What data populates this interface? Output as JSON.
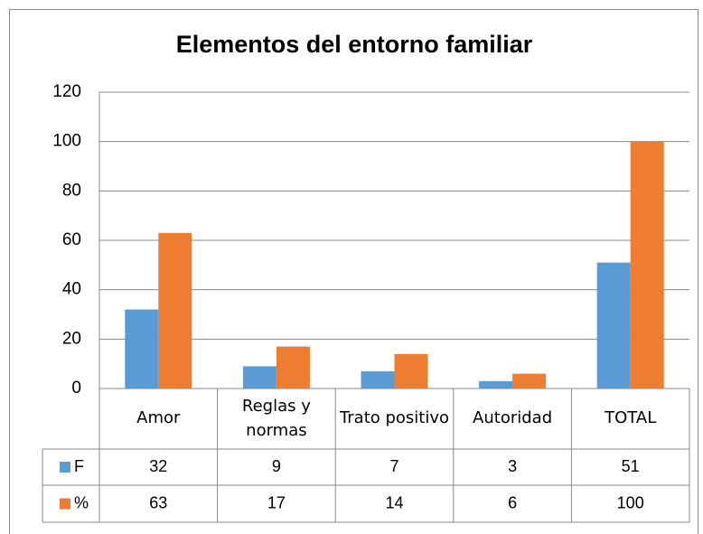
{
  "chart_data": {
    "type": "bar",
    "title": "Elementos del entorno familiar",
    "categories": [
      "Amor",
      "Reglas y normas",
      "Trato positivo",
      "Autoridad",
      "TOTAL"
    ],
    "series": [
      {
        "name": "F",
        "color": "#5b9bd5",
        "values": [
          32,
          9,
          7,
          3,
          51
        ]
      },
      {
        "name": "%",
        "color": "#ed7d31",
        "values": [
          63,
          17,
          14,
          6,
          100
        ]
      }
    ],
    "ylim": [
      0,
      120
    ],
    "yticks": [
      0,
      20,
      40,
      60,
      80,
      100,
      120
    ],
    "grid": true
  }
}
